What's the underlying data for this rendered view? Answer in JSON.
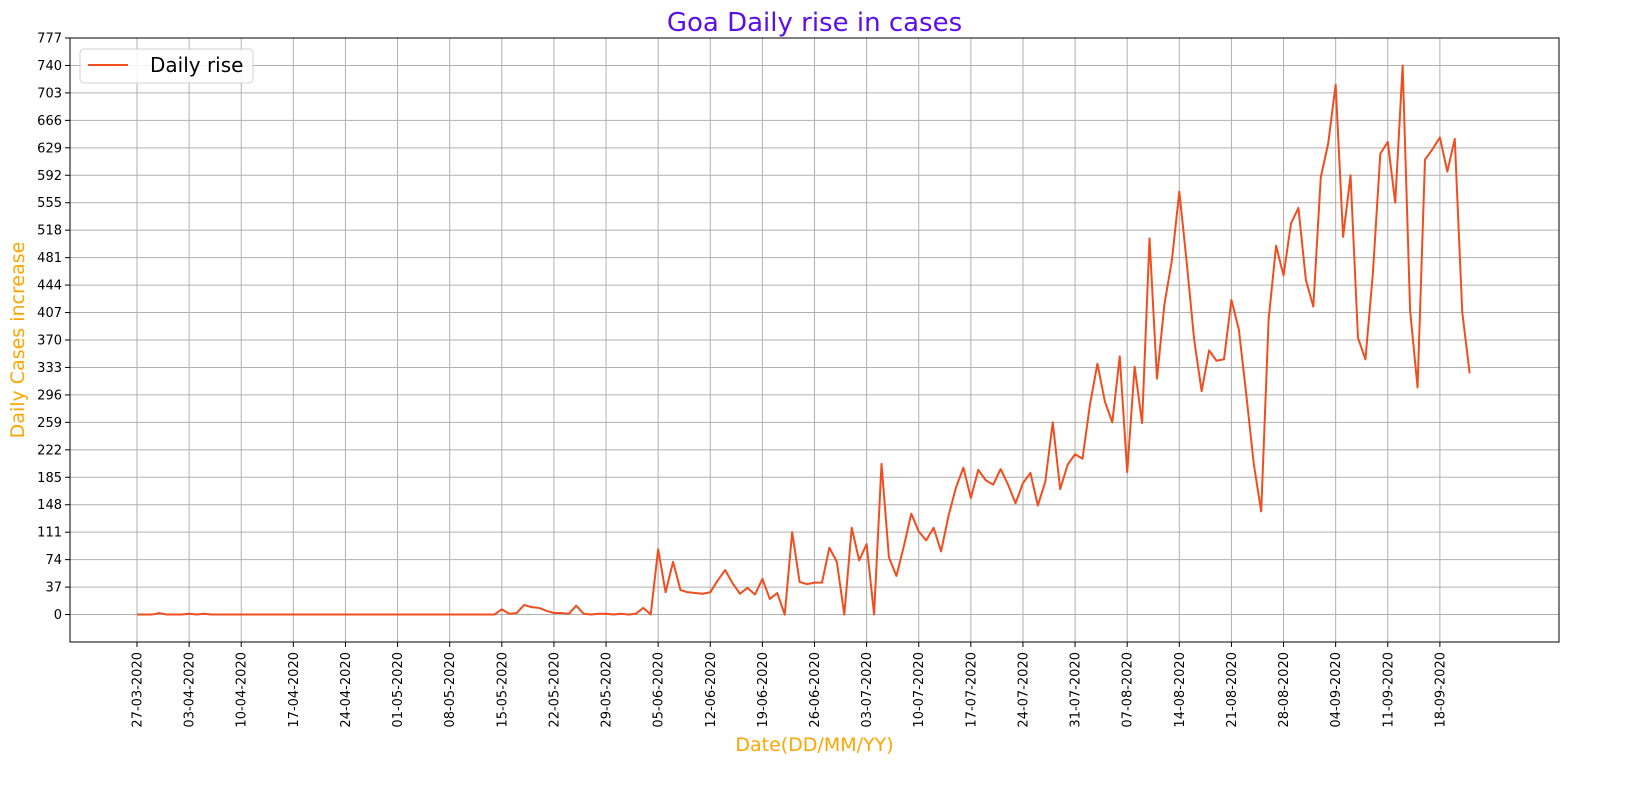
{
  "chart_data": {
    "type": "line",
    "title": "Goa Daily rise in cases",
    "xlabel": "Date(DD/MM/YY)",
    "ylabel": "Daily Cases increase",
    "title_color": "#5b10e6",
    "label_color": "#ffa500",
    "line_color": "#f04e1e",
    "grid": true,
    "legend_position": "top-left",
    "ylim": [
      -37,
      777
    ],
    "y_ticks": [
      0,
      37,
      74,
      111,
      148,
      185,
      222,
      259,
      296,
      333,
      370,
      407,
      444,
      481,
      518,
      555,
      592,
      629,
      666,
      703,
      740,
      777
    ],
    "x_range": [
      "18-03-2020",
      "04-10-2020"
    ],
    "x_ticks": [
      "27-03-2020",
      "03-04-2020",
      "10-04-2020",
      "17-04-2020",
      "24-04-2020",
      "01-05-2020",
      "08-05-2020",
      "15-05-2020",
      "22-05-2020",
      "29-05-2020",
      "05-06-2020",
      "12-06-2020",
      "19-06-2020",
      "26-06-2020",
      "03-07-2020",
      "10-07-2020",
      "17-07-2020",
      "24-07-2020",
      "31-07-2020",
      "07-08-2020",
      "14-08-2020",
      "21-08-2020",
      "28-08-2020",
      "04-09-2020",
      "11-09-2020",
      "18-09-2020"
    ],
    "series": [
      {
        "name": "Daily rise",
        "x_start": "27-03-2020",
        "values": [
          0,
          0,
          0,
          2,
          0,
          0,
          0,
          1,
          0,
          1,
          0,
          0,
          0,
          0,
          0,
          0,
          0,
          0,
          0,
          0,
          0,
          0,
          0,
          0,
          0,
          0,
          0,
          0,
          0,
          0,
          0,
          0,
          0,
          0,
          0,
          0,
          0,
          0,
          0,
          0,
          0,
          0,
          0,
          0,
          0,
          0,
          0,
          0,
          0,
          7,
          1,
          2,
          13,
          10,
          9,
          5,
          2,
          2,
          1,
          12,
          1,
          0,
          1,
          1,
          0,
          1,
          0,
          1,
          9,
          0,
          88,
          30,
          71,
          33,
          30,
          29,
          28,
          30,
          46,
          60,
          42,
          28,
          36,
          27,
          48,
          21,
          29,
          0,
          111,
          44,
          41,
          43,
          43,
          90,
          71,
          0,
          117,
          73,
          95,
          0,
          203,
          77,
          52,
          92,
          136,
          112,
          100,
          117,
          85,
          133,
          171,
          198,
          157,
          195,
          181,
          175,
          196,
          175,
          150,
          177,
          191,
          147,
          179,
          259,
          169,
          202,
          216,
          210,
          283,
          338,
          287,
          259,
          348,
          192,
          334,
          258,
          507,
          318,
          418,
          477,
          570,
          474,
          370,
          301,
          356,
          342,
          344,
          424,
          384,
          296,
          203,
          139,
          398,
          497,
          457,
          527,
          548,
          451,
          415,
          589,
          635,
          714,
          509,
          592,
          373,
          344,
          460,
          621,
          637,
          555,
          740,
          410,
          306,
          613,
          627,
          643,
          597,
          641,
          408,
          325
        ]
      }
    ]
  }
}
